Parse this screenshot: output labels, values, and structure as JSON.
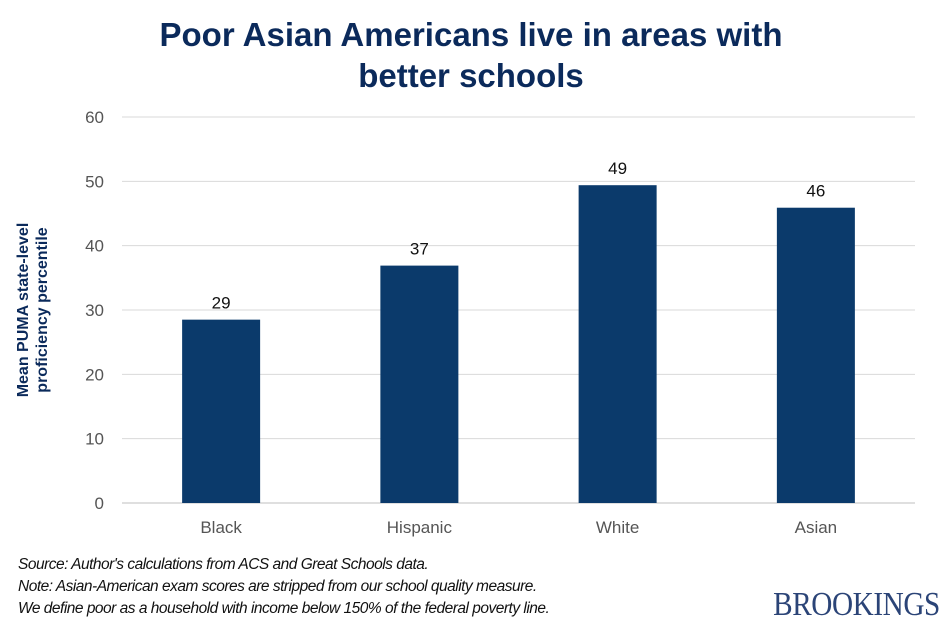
{
  "chart_data": {
    "type": "bar",
    "title": "Poor Asian Americans live in areas with better schools",
    "title_lines": [
      "Poor Asian Americans live in areas with",
      "better schools"
    ],
    "xlabel": "",
    "ylabel": "Mean PUMA state-level proficiency percentile",
    "ylabel_lines": [
      "Mean PUMA state-level",
      "proficiency percentile"
    ],
    "categories": [
      "Black",
      "Hispanic",
      "White",
      "Asian"
    ],
    "values": [
      28.5,
      36.9,
      49.4,
      45.9
    ],
    "data_labels": [
      "29",
      "37",
      "49",
      "46"
    ],
    "ylim": [
      0,
      60
    ],
    "yticks": [
      0,
      10,
      20,
      30,
      40,
      50,
      60
    ],
    "grid": true,
    "bar_color": "#0b3a6b"
  },
  "notes": [
    "Source: Author's calculations from ACS and Great Schools data.",
    "Note: Asian-American exam scores are stripped from our school quality measure.",
    "We define poor as a household with income below 150% of the federal poverty line."
  ],
  "logo": "BROOKINGS"
}
